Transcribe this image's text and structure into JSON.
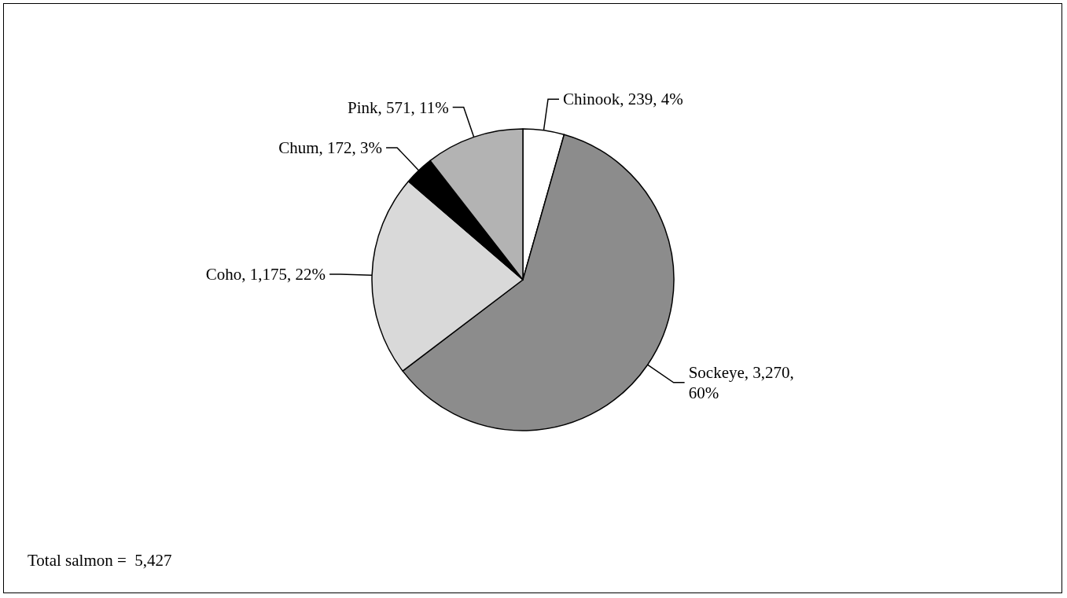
{
  "chart_data": {
    "type": "pie",
    "categories": [
      "Chinook",
      "Sockeye",
      "Coho",
      "Chum",
      "Pink"
    ],
    "values": [
      239,
      3270,
      1175,
      172,
      571
    ],
    "colors": [
      "#ffffff",
      "#8c8c8c",
      "#d9d9d9",
      "#000000",
      "#b3b3b3"
    ],
    "value_labels": [
      "239, 4%",
      "3,270,\n60%",
      "1,175, 22%",
      "172, 3%",
      "571, 11%"
    ],
    "annotations": [
      "Total salmon =  5,427"
    ],
    "legend": false
  }
}
